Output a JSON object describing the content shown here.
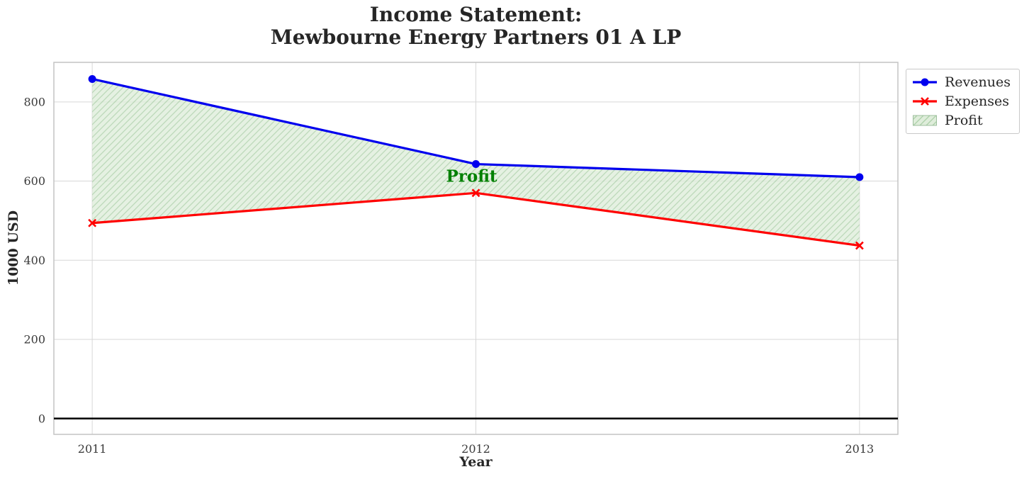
{
  "chart_data": {
    "type": "line",
    "title": "Income Statement: Mewbourne Energy Partners 01 A LP",
    "title_lines": [
      "Income Statement:",
      "Mewbourne Energy Partners 01 A LP"
    ],
    "xlabel": "Year",
    "ylabel": "1000 USD",
    "x": [
      2011,
      2012,
      2013
    ],
    "x_tick_labels": [
      "2011",
      "2012",
      "2013"
    ],
    "y_ticks": [
      0,
      200,
      400,
      600,
      800
    ],
    "xlim": [
      2010.9,
      2013.1
    ],
    "ylim": [
      -40,
      900
    ],
    "grid": true,
    "zero_line": 0,
    "series": [
      {
        "name": "Revenues",
        "marker": "circle",
        "color": "#0000ee",
        "values": [
          858,
          643,
          610
        ]
      },
      {
        "name": "Expenses",
        "marker": "x",
        "color": "#ff0000",
        "values": [
          494,
          570,
          437
        ]
      }
    ],
    "fill_between": {
      "label": "Profit",
      "upper": "Revenues",
      "lower": "Expenses",
      "profit_values": [
        364,
        73,
        173
      ],
      "fill_color": "#dfeddb",
      "hatch_color": "#abd0a8",
      "hatch": "///",
      "swatch_border": "#9dbf9d"
    },
    "annotation": {
      "text": "Profit",
      "x": 2012,
      "y": 611,
      "color": "#008000"
    },
    "legend": {
      "position": "upper right outside",
      "labels": [
        "Revenues",
        "Expenses",
        "Profit"
      ]
    },
    "colors": {
      "grid": "#d7d7d7",
      "plot_border": "#c4c4c4",
      "zero_line": "#000000",
      "text": "#262626"
    }
  }
}
